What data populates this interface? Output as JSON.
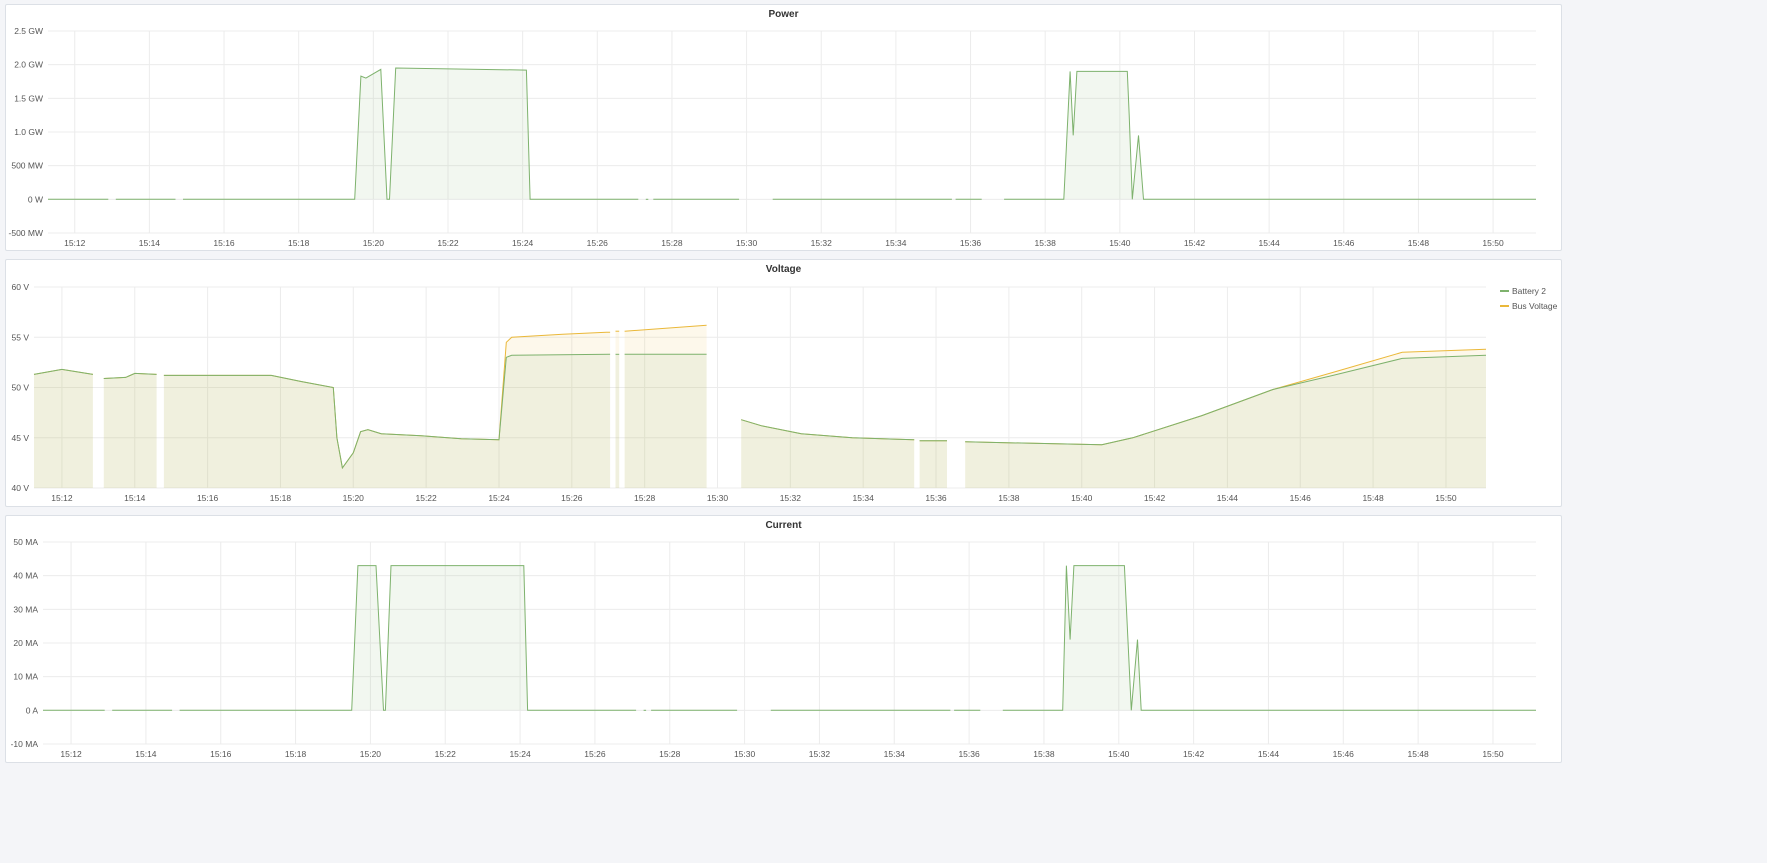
{
  "colors": {
    "green": "#7eb26d",
    "yellow": "#eab839"
  },
  "x_ticks": [
    "15:12",
    "15:14",
    "15:16",
    "15:18",
    "15:20",
    "15:22",
    "15:24",
    "15:26",
    "15:28",
    "15:30",
    "15:32",
    "15:34",
    "15:36",
    "15:38",
    "15:40",
    "15:42",
    "15:44",
    "15:46",
    "15:48",
    "15:50"
  ],
  "chart_data": [
    {
      "title": "Power",
      "type": "area",
      "x_range": [
        "15:11:17",
        "15:51:09"
      ],
      "ylim": [
        -500000000,
        2500000000
      ],
      "y_ticks": [
        {
          "v": 2500000000,
          "label": "2.5 GW"
        },
        {
          "v": 2000000000,
          "label": "2.0 GW"
        },
        {
          "v": 1500000000,
          "label": "1.5 GW"
        },
        {
          "v": 1000000000,
          "label": "1.0 GW"
        },
        {
          "v": 500000000,
          "label": "500 MW"
        },
        {
          "v": 0,
          "label": "0 W"
        },
        {
          "v": -500000000,
          "label": "-500 MW"
        }
      ],
      "grid": true,
      "series": [
        {
          "color": "green",
          "points": [
            [
              "15:11:17",
              0
            ],
            [
              "15:12:54",
              0
            ],
            null,
            [
              "15:13:06",
              0
            ],
            [
              "15:14:42",
              0
            ],
            null,
            [
              "15:14:54",
              0
            ],
            [
              "15:19:30",
              0
            ],
            [
              "15:19:40",
              1830000000
            ],
            [
              "15:19:48",
              1800000000
            ],
            [
              "15:20:12",
              1930000000
            ],
            [
              "15:20:22",
              0
            ],
            [
              "15:20:26",
              0
            ],
            [
              "15:20:36",
              1950000000
            ],
            [
              "15:24:06",
              1920000000
            ],
            [
              "15:24:12",
              0
            ],
            [
              "15:27:06",
              0
            ],
            null,
            [
              "15:27:18",
              0
            ],
            [
              "15:27:22",
              0
            ],
            null,
            [
              "15:27:30",
              0
            ],
            [
              "15:29:48",
              0
            ],
            null,
            [
              "15:30:42",
              0
            ],
            [
              "15:35:30",
              0
            ],
            null,
            [
              "15:35:36",
              0
            ],
            [
              "15:36:18",
              0
            ],
            null,
            [
              "15:36:54",
              0
            ],
            [
              "15:38:30",
              0
            ],
            [
              "15:38:40",
              1900000000
            ],
            [
              "15:38:45",
              950000000
            ],
            [
              "15:38:51",
              1900000000
            ],
            [
              "15:40:12",
              1900000000
            ],
            [
              "15:40:15",
              1250000000
            ],
            [
              "15:40:20",
              0
            ],
            [
              "15:40:30",
              950000000
            ],
            [
              "15:40:38",
              0
            ],
            [
              "15:51:09",
              0
            ]
          ]
        }
      ]
    },
    {
      "title": "Voltage",
      "type": "area",
      "x_range": [
        "15:11:14",
        "15:51:06"
      ],
      "ylim": [
        40,
        60
      ],
      "y_ticks": [
        {
          "v": 60,
          "label": "60 V"
        },
        {
          "v": 55,
          "label": "55 V"
        },
        {
          "v": 50,
          "label": "50 V"
        },
        {
          "v": 45,
          "label": "45 V"
        },
        {
          "v": 40,
          "label": "40 V"
        }
      ],
      "grid": true,
      "legend": "right",
      "series": [
        {
          "name": "Bus Voltage",
          "color": "yellow",
          "points": [
            [
              "15:11:14",
              51.3
            ],
            [
              "15:12:00",
              51.8
            ],
            [
              "15:12:51",
              51.3
            ],
            null,
            [
              "15:13:09",
              50.9
            ],
            [
              "15:13:45",
              51.0
            ],
            [
              "15:14:00",
              51.4
            ],
            [
              "15:14:36",
              51.3
            ],
            null,
            [
              "15:14:48",
              51.2
            ],
            [
              "15:17:45",
              51.2
            ],
            [
              "15:18:34",
              50.6
            ],
            [
              "15:19:27",
              50.0
            ],
            [
              "15:19:33",
              45.0
            ],
            [
              "15:19:42",
              42.0
            ],
            [
              "15:20:00",
              43.5
            ],
            [
              "15:20:12",
              45.6
            ],
            [
              "15:20:24",
              45.8
            ],
            [
              "15:20:46",
              45.4
            ],
            [
              "15:21:52",
              45.2
            ],
            [
              "15:22:58",
              44.9
            ],
            [
              "15:24:00",
              44.8
            ],
            [
              "15:24:12",
              54.5
            ],
            [
              "15:24:21",
              55.0
            ],
            [
              "15:25:45",
              55.3
            ],
            [
              "15:26:57",
              55.5
            ],
            [
              "15:27:03",
              55.5
            ],
            null,
            [
              "15:27:12",
              55.6
            ],
            [
              "15:27:18",
              55.6
            ],
            null,
            [
              "15:27:27",
              55.6
            ],
            [
              "15:29:42",
              56.2
            ],
            null,
            [
              "15:30:39",
              46.8
            ],
            [
              "15:31:12",
              46.2
            ],
            [
              "15:32:18",
              45.4
            ],
            [
              "15:33:42",
              45.0
            ],
            [
              "15:35:24",
              44.8
            ],
            null,
            [
              "15:35:33",
              44.7
            ],
            [
              "15:36:18",
              44.7
            ],
            null,
            [
              "15:36:48",
              44.6
            ],
            [
              "15:40:33",
              44.3
            ],
            [
              "15:41:24",
              45.0
            ],
            [
              "15:43:18",
              47.2
            ],
            [
              "15:45:15",
              49.8
            ],
            [
              "15:46:54",
              51.5
            ],
            [
              "15:48:48",
              53.5
            ],
            [
              "15:51:06",
              53.8
            ]
          ]
        },
        {
          "name": "Battery 2",
          "color": "green",
          "points": [
            [
              "15:11:14",
              51.3
            ],
            [
              "15:12:00",
              51.8
            ],
            [
              "15:12:51",
              51.3
            ],
            null,
            [
              "15:13:09",
              50.9
            ],
            [
              "15:13:45",
              51.0
            ],
            [
              "15:14:00",
              51.4
            ],
            [
              "15:14:36",
              51.3
            ],
            null,
            [
              "15:14:48",
              51.2
            ],
            [
              "15:17:45",
              51.2
            ],
            [
              "15:18:34",
              50.6
            ],
            [
              "15:19:27",
              50.0
            ],
            [
              "15:19:33",
              45.0
            ],
            [
              "15:19:42",
              42.0
            ],
            [
              "15:20:00",
              43.5
            ],
            [
              "15:20:12",
              45.6
            ],
            [
              "15:20:24",
              45.8
            ],
            [
              "15:20:46",
              45.4
            ],
            [
              "15:21:52",
              45.2
            ],
            [
              "15:22:58",
              44.9
            ],
            [
              "15:24:00",
              44.8
            ],
            [
              "15:24:12",
              53.0
            ],
            [
              "15:24:21",
              53.2
            ],
            [
              "15:27:03",
              53.3
            ],
            null,
            [
              "15:27:12",
              53.3
            ],
            [
              "15:27:18",
              53.3
            ],
            null,
            [
              "15:27:27",
              53.3
            ],
            [
              "15:29:42",
              53.3
            ],
            null,
            [
              "15:30:39",
              46.8
            ],
            [
              "15:31:12",
              46.2
            ],
            [
              "15:32:18",
              45.4
            ],
            [
              "15:33:42",
              45.0
            ],
            [
              "15:35:24",
              44.8
            ],
            null,
            [
              "15:35:33",
              44.7
            ],
            [
              "15:36:18",
              44.7
            ],
            null,
            [
              "15:36:48",
              44.6
            ],
            [
              "15:40:33",
              44.3
            ],
            [
              "15:41:24",
              45.0
            ],
            [
              "15:43:18",
              47.2
            ],
            [
              "15:45:15",
              49.8
            ],
            [
              "15:46:54",
              51.2
            ],
            [
              "15:48:48",
              52.9
            ],
            [
              "15:51:06",
              53.2
            ]
          ]
        }
      ]
    },
    {
      "title": "Current",
      "type": "area",
      "x_range": [
        "15:11:15",
        "15:51:09"
      ],
      "ylim": [
        -10000000,
        50000000
      ],
      "y_ticks": [
        {
          "v": 50000000,
          "label": "50 MA"
        },
        {
          "v": 40000000,
          "label": "40 MA"
        },
        {
          "v": 30000000,
          "label": "30 MA"
        },
        {
          "v": 20000000,
          "label": "20 MA"
        },
        {
          "v": 10000000,
          "label": "10 MA"
        },
        {
          "v": 0,
          "label": "0 A"
        },
        {
          "v": -10000000,
          "label": "-10 MA"
        }
      ],
      "grid": true,
      "series": [
        {
          "color": "green",
          "points": [
            [
              "15:11:15",
              0
            ],
            [
              "15:12:54",
              0
            ],
            null,
            [
              "15:13:06",
              0
            ],
            [
              "15:14:42",
              0
            ],
            null,
            [
              "15:14:54",
              0
            ],
            [
              "15:19:30",
              0
            ],
            [
              "15:19:40",
              43000000
            ],
            [
              "15:20:09",
              43000000
            ],
            [
              "15:20:21",
              0
            ],
            [
              "15:20:24",
              0
            ],
            [
              "15:20:33",
              43000000
            ],
            [
              "15:24:06",
              43000000
            ],
            [
              "15:24:12",
              0
            ],
            [
              "15:27:06",
              0
            ],
            null,
            [
              "15:27:18",
              0
            ],
            [
              "15:27:22",
              0
            ],
            null,
            [
              "15:27:30",
              0
            ],
            [
              "15:29:48",
              0
            ],
            null,
            [
              "15:30:42",
              0
            ],
            [
              "15:35:30",
              0
            ],
            null,
            [
              "15:35:36",
              0
            ],
            [
              "15:36:18",
              0
            ],
            null,
            [
              "15:36:54",
              0
            ],
            [
              "15:38:30",
              0
            ],
            [
              "15:38:36",
              43000000
            ],
            [
              "15:38:42",
              21000000
            ],
            [
              "15:38:48",
              43000000
            ],
            [
              "15:40:09",
              43000000
            ],
            [
              "15:40:20",
              0
            ],
            [
              "15:40:30",
              21000000
            ],
            [
              "15:40:36",
              0
            ],
            [
              "15:51:09",
              0
            ]
          ]
        }
      ]
    }
  ]
}
